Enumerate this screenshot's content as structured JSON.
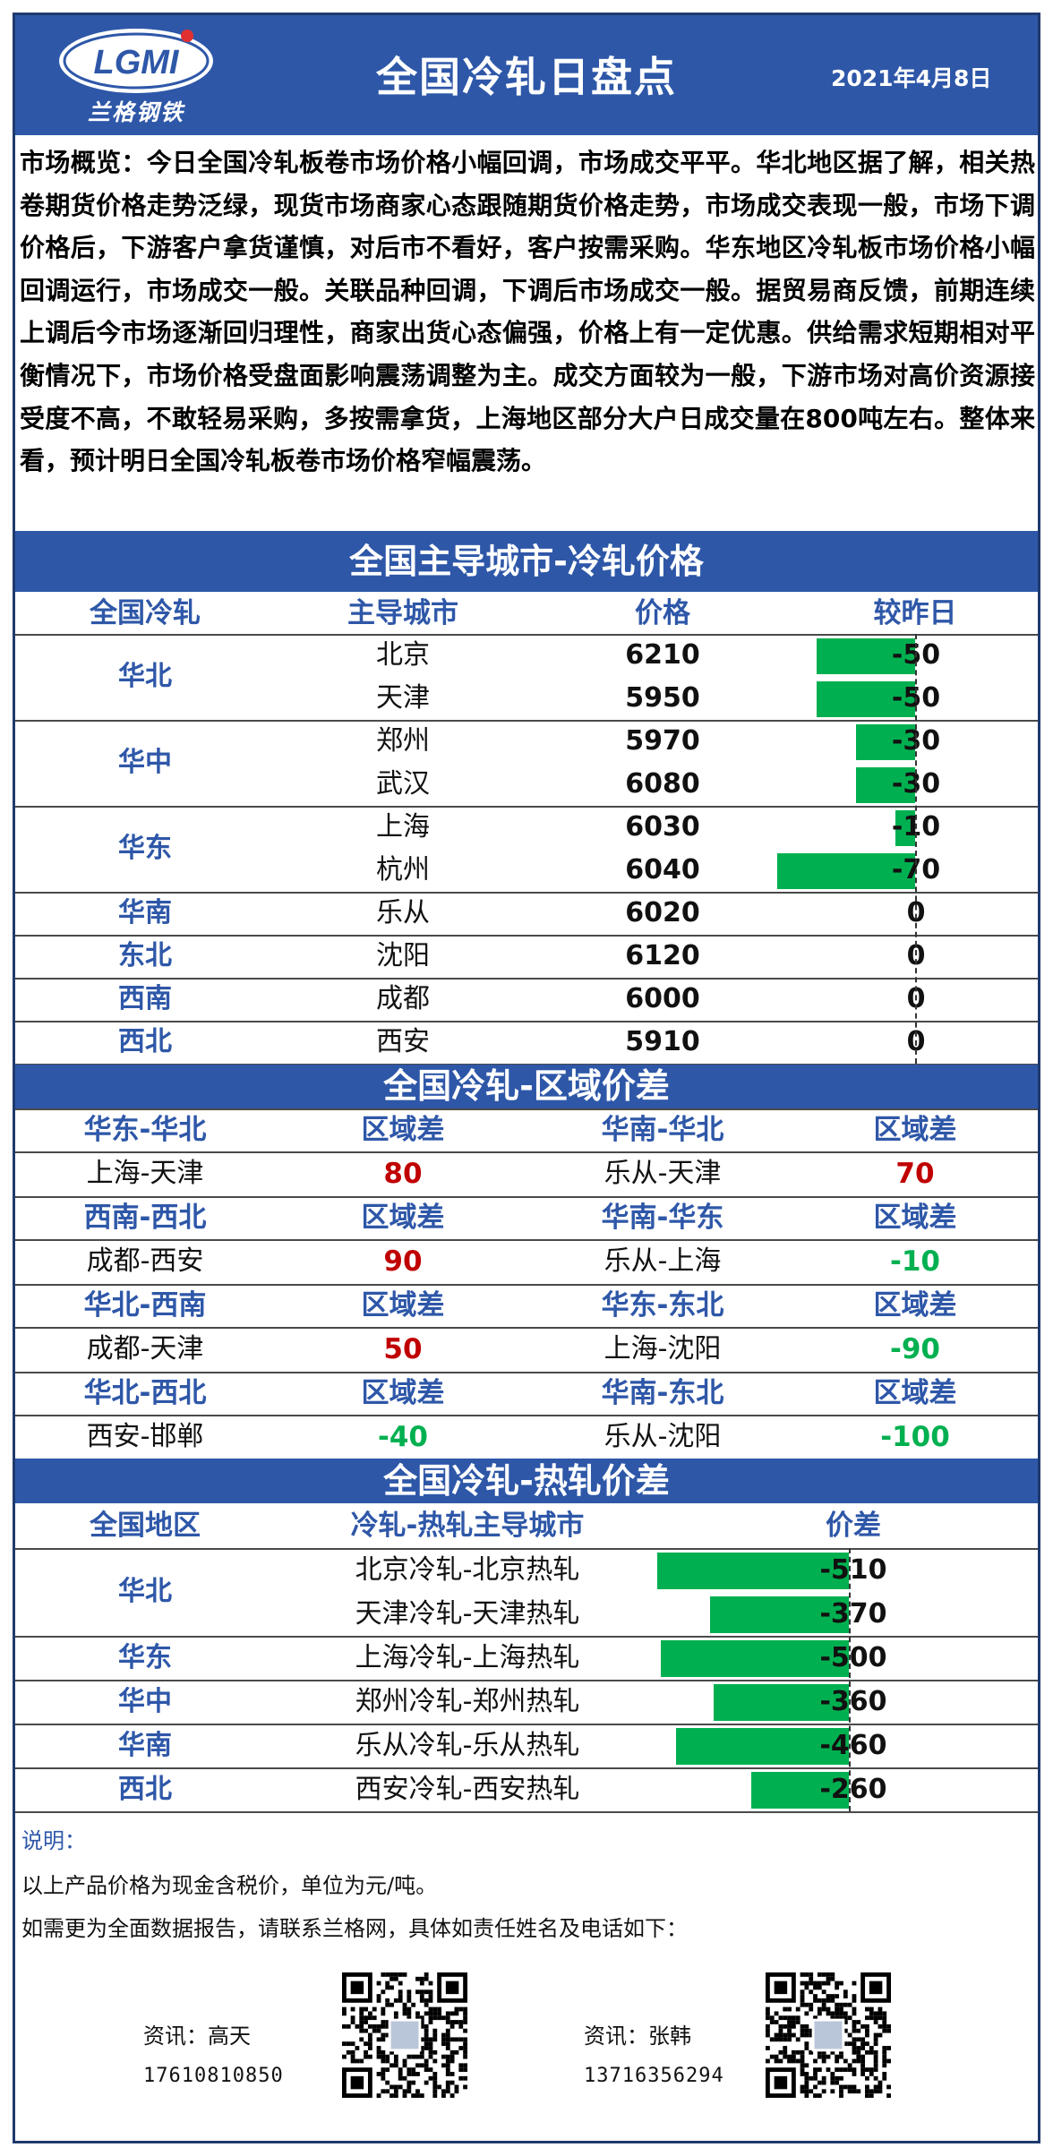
{
  "header": {
    "logo_text": "LGMI",
    "logo_subtitle": "兰格钢铁",
    "title": "全国冷轧日盘点",
    "date": "2021年4月8日"
  },
  "overview": "市场概览：今日全国冷轧板卷市场价格小幅回调，市场成交平平。华北地区据了解，相关热卷期货价格走势泛绿，现货市场商家心态跟随期货价格走势，市场成交表现一般，市场下调价格后，下游客户拿货谨慎，对后市不看好，客户按需采购。华东地区冷轧板市场价格小幅回调运行，市场成交一般。关联品种回调，下调后市场成交一般。据贸易商反馈，前期连续上调后今市场逐渐回归理性，商家出货心态偏强，价格上有一定优惠。供给需求短期相对平衡情况下，市场价格受盘面影响震荡调整为主。成交方面较为一般，下游市场对高价资源接受度不高，不敢轻易采购，多按需拿货，上海地区部分大户日成交量在800吨左右。整体来看，预计明日全国冷轧板卷市场价格窄幅震荡。",
  "prices": {
    "title": "全国主导城市-冷轧价格",
    "headers": [
      "全国冷轧",
      "主导城市",
      "价格",
      "较昨日"
    ],
    "groups": [
      {
        "region": "华北",
        "rows": [
          {
            "city": "北京",
            "price": 6210,
            "change": -50
          },
          {
            "city": "天津",
            "price": 5950,
            "change": -50
          }
        ]
      },
      {
        "region": "华中",
        "rows": [
          {
            "city": "郑州",
            "price": 5970,
            "change": -30
          },
          {
            "city": "武汉",
            "price": 6080,
            "change": -30
          }
        ]
      },
      {
        "region": "华东",
        "rows": [
          {
            "city": "上海",
            "price": 6030,
            "change": -10
          },
          {
            "city": "杭州",
            "price": 6040,
            "change": -70
          }
        ]
      },
      {
        "region": "华南",
        "rows": [
          {
            "city": "乐从",
            "price": 6020,
            "change": 0
          }
        ]
      },
      {
        "region": "东北",
        "rows": [
          {
            "city": "沈阳",
            "price": 6120,
            "change": 0
          }
        ]
      },
      {
        "region": "西南",
        "rows": [
          {
            "city": "成都",
            "price": 6000,
            "change": 0
          }
        ]
      },
      {
        "region": "西北",
        "rows": [
          {
            "city": "西安",
            "price": 5910,
            "change": 0
          }
        ]
      }
    ]
  },
  "spread": {
    "title": "全国冷轧-区域价差",
    "diff_label": "区域差",
    "pairs": [
      [
        {
          "group": "华东-华北",
          "pair": "上海-天津",
          "value": "80",
          "status": "up"
        },
        {
          "group": "华南-华北",
          "pair": "乐从-天津",
          "value": "70",
          "status": "up"
        }
      ],
      [
        {
          "group": "西南-西北",
          "pair": "成都-西安",
          "value": "90",
          "status": "up"
        },
        {
          "group": "华南-华东",
          "pair": "乐从-上海",
          "value": "-10",
          "status": "down"
        }
      ],
      [
        {
          "group": "华北-西南",
          "pair": "成都-天津",
          "value": "50",
          "status": "up"
        },
        {
          "group": "华东-东北",
          "pair": "上海-沈阳",
          "value": "-90",
          "status": "down"
        }
      ],
      [
        {
          "group": "华北-西北",
          "pair": "西安-邯郸",
          "value": "-40",
          "status": "down"
        },
        {
          "group": "华南-东北",
          "pair": "乐从-沈阳",
          "value": "-100",
          "status": "down"
        }
      ]
    ]
  },
  "hot_spread": {
    "title": "全国冷轧-热轧价差",
    "headers": [
      "全国地区",
      "冷轧-热轧主导城市",
      "价差"
    ],
    "groups": [
      {
        "region": "华北",
        "rows": [
          {
            "pair": "北京冷轧-北京热轧",
            "value": -510
          },
          {
            "pair": "天津冷轧-天津热轧",
            "value": -370
          }
        ]
      },
      {
        "region": "华东",
        "rows": [
          {
            "pair": "上海冷轧-上海热轧",
            "value": -500
          }
        ]
      },
      {
        "region": "华中",
        "rows": [
          {
            "pair": "郑州冷轧-郑州热轧",
            "value": -360
          }
        ]
      },
      {
        "region": "华南",
        "rows": [
          {
            "pair": "乐从冷轧-乐从热轧",
            "value": -460
          }
        ]
      },
      {
        "region": "西北",
        "rows": [
          {
            "pair": "西安冷轧-西安热轧",
            "value": -260
          }
        ]
      }
    ]
  },
  "notes": {
    "label": "说明：",
    "line1": "以上产品价格为现金含税价，单位为元/吨。",
    "line2": "如需更为全面数据报告，请联系兰格网，具体如责任姓名及电话如下："
  },
  "contacts": [
    {
      "name": "资讯：高天",
      "phone": "17610810850"
    },
    {
      "name": "资讯：张韩",
      "phone": "13716356294"
    }
  ],
  "colors": {
    "band": "#2e57a8",
    "up": "#c00000",
    "down": "#00b050",
    "bar": "#00b050"
  }
}
